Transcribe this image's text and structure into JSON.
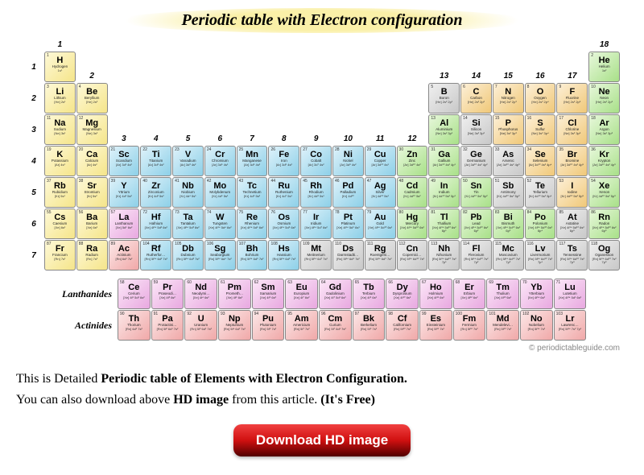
{
  "title": "Periodic table with Electron configuration",
  "credit": "© periodictableguide.com",
  "desc_line1_a": "This is Detailed ",
  "desc_line1_b": "Periodic table of Elements with Electron Configuration.",
  "desc_line2_a": "You can also download above ",
  "desc_line2_b": "HD image",
  "desc_line2_c": " from this article. ",
  "desc_line2_d": "(It's Free)",
  "download_btn": "Download HD image",
  "series": {
    "lanth": "Lanthanides",
    "act": "Actinides"
  },
  "group_labels": [
    "1",
    "2",
    "3",
    "4",
    "5",
    "6",
    "7",
    "8",
    "9",
    "10",
    "11",
    "12",
    "13",
    "14",
    "15",
    "16",
    "17",
    "18"
  ],
  "period_labels": [
    "1",
    "2",
    "3",
    "4",
    "5",
    "6",
    "7"
  ],
  "colors": {
    "alkali_y": "#f5e58a",
    "alk_earth_y": "#f5e58a",
    "noble_g": "#a8e088",
    "metalloid_g": "#a8e088",
    "trans_b": "#8dd0e8",
    "nonmet_o": "#f0c878",
    "post_gr": "#c8c8c8",
    "lanth_p": "#e8a8e0",
    "act_r": "#f0a8a8"
  },
  "elements": [
    {
      "n": 1,
      "s": "H",
      "name": "Hydrogen",
      "conf": "1s¹",
      "r": 1,
      "c": 1,
      "cl": "c-y"
    },
    {
      "n": 2,
      "s": "He",
      "name": "Helium",
      "conf": "1s²",
      "r": 1,
      "c": 18,
      "cl": "c-g"
    },
    {
      "n": 3,
      "s": "Li",
      "name": "Lithium",
      "conf": "[He] 2s¹",
      "r": 2,
      "c": 1,
      "cl": "c-y"
    },
    {
      "n": 4,
      "s": "Be",
      "name": "Beryllium",
      "conf": "[He] 2s²",
      "r": 2,
      "c": 2,
      "cl": "c-y"
    },
    {
      "n": 5,
      "s": "B",
      "name": "Boron",
      "conf": "[He] 2s² 2p¹",
      "r": 2,
      "c": 13,
      "cl": "c-gr"
    },
    {
      "n": 6,
      "s": "C",
      "name": "Carbon",
      "conf": "[He] 2s² 2p²",
      "r": 2,
      "c": 14,
      "cl": "c-o"
    },
    {
      "n": 7,
      "s": "N",
      "name": "Nitrogen",
      "conf": "[He] 2s² 2p³",
      "r": 2,
      "c": 15,
      "cl": "c-o"
    },
    {
      "n": 8,
      "s": "O",
      "name": "Oxygen",
      "conf": "[He] 2s² 2p⁴",
      "r": 2,
      "c": 16,
      "cl": "c-o"
    },
    {
      "n": 9,
      "s": "F",
      "name": "Fluorine",
      "conf": "[He] 2s² 2p⁵",
      "r": 2,
      "c": 17,
      "cl": "c-o"
    },
    {
      "n": 10,
      "s": "Ne",
      "name": "Neon",
      "conf": "[He] 2s² 2p⁶",
      "r": 2,
      "c": 18,
      "cl": "c-g"
    },
    {
      "n": 11,
      "s": "Na",
      "name": "Sodium",
      "conf": "[Ne] 3s¹",
      "r": 3,
      "c": 1,
      "cl": "c-y"
    },
    {
      "n": 12,
      "s": "Mg",
      "name": "Magnesium",
      "conf": "[Ne] 3s²",
      "r": 3,
      "c": 2,
      "cl": "c-y"
    },
    {
      "n": 13,
      "s": "Al",
      "name": "Aluminium",
      "conf": "[Ne] 3s² 3p¹",
      "r": 3,
      "c": 13,
      "cl": "c-g"
    },
    {
      "n": 14,
      "s": "Si",
      "name": "Silicon",
      "conf": "[Ne] 3s² 3p²",
      "r": 3,
      "c": 14,
      "cl": "c-gr"
    },
    {
      "n": 15,
      "s": "P",
      "name": "Phosphorus",
      "conf": "[Ne] 3s² 3p³",
      "r": 3,
      "c": 15,
      "cl": "c-o"
    },
    {
      "n": 16,
      "s": "S",
      "name": "Sulfur",
      "conf": "[Ne] 3s² 3p⁴",
      "r": 3,
      "c": 16,
      "cl": "c-o"
    },
    {
      "n": 17,
      "s": "Cl",
      "name": "Chlorine",
      "conf": "[Ne] 3s² 3p⁵",
      "r": 3,
      "c": 17,
      "cl": "c-o"
    },
    {
      "n": 18,
      "s": "Ar",
      "name": "Argon",
      "conf": "[Ne] 3s² 3p⁶",
      "r": 3,
      "c": 18,
      "cl": "c-g"
    },
    {
      "n": 19,
      "s": "K",
      "name": "Potassium",
      "conf": "[Ar] 4s¹",
      "r": 4,
      "c": 1,
      "cl": "c-y"
    },
    {
      "n": 20,
      "s": "Ca",
      "name": "Calcium",
      "conf": "[Ar] 4s²",
      "r": 4,
      "c": 2,
      "cl": "c-y"
    },
    {
      "n": 21,
      "s": "Sc",
      "name": "Scandium",
      "conf": "[Ar] 3d¹ 4s²",
      "r": 4,
      "c": 3,
      "cl": "c-b"
    },
    {
      "n": 22,
      "s": "Ti",
      "name": "Titanium",
      "conf": "[Ar] 3d² 4s²",
      "r": 4,
      "c": 4,
      "cl": "c-b"
    },
    {
      "n": 23,
      "s": "V",
      "name": "Vanadium",
      "conf": "[Ar] 3d³ 4s²",
      "r": 4,
      "c": 5,
      "cl": "c-b"
    },
    {
      "n": 24,
      "s": "Cr",
      "name": "Chromium",
      "conf": "[Ar] 3d⁵ 4s¹",
      "r": 4,
      "c": 6,
      "cl": "c-b"
    },
    {
      "n": 25,
      "s": "Mn",
      "name": "Manganese",
      "conf": "[Ar] 3d⁵ 4s²",
      "r": 4,
      "c": 7,
      "cl": "c-b"
    },
    {
      "n": 26,
      "s": "Fe",
      "name": "Iron",
      "conf": "[Ar] 3d⁶ 4s²",
      "r": 4,
      "c": 8,
      "cl": "c-b"
    },
    {
      "n": 27,
      "s": "Co",
      "name": "Cobalt",
      "conf": "[Ar] 3d⁷ 4s²",
      "r": 4,
      "c": 9,
      "cl": "c-b"
    },
    {
      "n": 28,
      "s": "Ni",
      "name": "Nickel",
      "conf": "[Ar] 3d⁸ 4s²",
      "r": 4,
      "c": 10,
      "cl": "c-b"
    },
    {
      "n": 29,
      "s": "Cu",
      "name": "Copper",
      "conf": "[Ar] 3d¹⁰ 4s¹",
      "r": 4,
      "c": 11,
      "cl": "c-b"
    },
    {
      "n": 30,
      "s": "Zn",
      "name": "Zinc",
      "conf": "[Ar] 3d¹⁰ 4s²",
      "r": 4,
      "c": 12,
      "cl": "c-g"
    },
    {
      "n": 31,
      "s": "Ga",
      "name": "Gallium",
      "conf": "[Ar] 3d¹⁰ 4s² 4p¹",
      "r": 4,
      "c": 13,
      "cl": "c-g"
    },
    {
      "n": 32,
      "s": "Ge",
      "name": "Germanium",
      "conf": "[Ar] 3d¹⁰ 4s² 4p²",
      "r": 4,
      "c": 14,
      "cl": "c-gr"
    },
    {
      "n": 33,
      "s": "As",
      "name": "Arsenic",
      "conf": "[Ar] 3d¹⁰ 4s² 4p³",
      "r": 4,
      "c": 15,
      "cl": "c-gr"
    },
    {
      "n": 34,
      "s": "Se",
      "name": "Selenium",
      "conf": "[Ar] 3d¹⁰ 4s² 4p⁴",
      "r": 4,
      "c": 16,
      "cl": "c-o"
    },
    {
      "n": 35,
      "s": "Br",
      "name": "Bromine",
      "conf": "[Ar] 3d¹⁰ 4s² 4p⁵",
      "r": 4,
      "c": 17,
      "cl": "c-o"
    },
    {
      "n": 36,
      "s": "Kr",
      "name": "Krypton",
      "conf": "[Ar] 3d¹⁰ 4s² 4p⁶",
      "r": 4,
      "c": 18,
      "cl": "c-g"
    },
    {
      "n": 37,
      "s": "Rb",
      "name": "Rubidium",
      "conf": "[Kr] 5s¹",
      "r": 5,
      "c": 1,
      "cl": "c-y"
    },
    {
      "n": 38,
      "s": "Sr",
      "name": "Strontium",
      "conf": "[Kr] 5s²",
      "r": 5,
      "c": 2,
      "cl": "c-y"
    },
    {
      "n": 39,
      "s": "Y",
      "name": "Yttrium",
      "conf": "[Kr] 4d¹ 5s²",
      "r": 5,
      "c": 3,
      "cl": "c-b"
    },
    {
      "n": 40,
      "s": "Zr",
      "name": "Zirconium",
      "conf": "[Kr] 4d² 5s²",
      "r": 5,
      "c": 4,
      "cl": "c-b"
    },
    {
      "n": 41,
      "s": "Nb",
      "name": "Niobium",
      "conf": "[Kr] 4d⁴ 5s¹",
      "r": 5,
      "c": 5,
      "cl": "c-b"
    },
    {
      "n": 42,
      "s": "Mo",
      "name": "Molybdenum",
      "conf": "[Kr] 4d⁵ 5s¹",
      "r": 5,
      "c": 6,
      "cl": "c-b"
    },
    {
      "n": 43,
      "s": "Tc",
      "name": "Technetium",
      "conf": "[Kr] 4d⁵ 5s²",
      "r": 5,
      "c": 7,
      "cl": "c-b"
    },
    {
      "n": 44,
      "s": "Ru",
      "name": "Ruthenium",
      "conf": "[Kr] 4d⁷ 5s¹",
      "r": 5,
      "c": 8,
      "cl": "c-b"
    },
    {
      "n": 45,
      "s": "Rh",
      "name": "Rhodium",
      "conf": "[Kr] 4d⁸ 5s¹",
      "r": 5,
      "c": 9,
      "cl": "c-b"
    },
    {
      "n": 46,
      "s": "Pd",
      "name": "Palladium",
      "conf": "[Kr] 4d¹⁰",
      "r": 5,
      "c": 10,
      "cl": "c-b"
    },
    {
      "n": 47,
      "s": "Ag",
      "name": "Silver",
      "conf": "[Kr] 4d¹⁰ 5s¹",
      "r": 5,
      "c": 11,
      "cl": "c-b"
    },
    {
      "n": 48,
      "s": "Cd",
      "name": "Cadmium",
      "conf": "[Kr] 4d¹⁰ 5s²",
      "r": 5,
      "c": 12,
      "cl": "c-g"
    },
    {
      "n": 49,
      "s": "In",
      "name": "Indium",
      "conf": "[Kr] 4d¹⁰ 5s² 5p¹",
      "r": 5,
      "c": 13,
      "cl": "c-g"
    },
    {
      "n": 50,
      "s": "Sn",
      "name": "Tin",
      "conf": "[Kr] 4d¹⁰ 5s² 5p²",
      "r": 5,
      "c": 14,
      "cl": "c-g"
    },
    {
      "n": 51,
      "s": "Sb",
      "name": "Antimony",
      "conf": "[Kr] 4d¹⁰ 5s² 5p³",
      "r": 5,
      "c": 15,
      "cl": "c-gr"
    },
    {
      "n": 52,
      "s": "Te",
      "name": "Tellurium",
      "conf": "[Kr] 4d¹⁰ 5s² 5p⁴",
      "r": 5,
      "c": 16,
      "cl": "c-gr"
    },
    {
      "n": 53,
      "s": "I",
      "name": "Iodine",
      "conf": "[Kr] 4d¹⁰ 5s² 5p⁵",
      "r": 5,
      "c": 17,
      "cl": "c-o"
    },
    {
      "n": 54,
      "s": "Xe",
      "name": "Xenon",
      "conf": "[Kr] 4d¹⁰ 5s² 5p⁶",
      "r": 5,
      "c": 18,
      "cl": "c-g"
    },
    {
      "n": 55,
      "s": "Cs",
      "name": "Caesium",
      "conf": "[Xe] 6s¹",
      "r": 6,
      "c": 1,
      "cl": "c-y"
    },
    {
      "n": 56,
      "s": "Ba",
      "name": "Barium",
      "conf": "[Xe] 6s²",
      "r": 6,
      "c": 2,
      "cl": "c-y"
    },
    {
      "n": 57,
      "s": "La",
      "name": "Lanthanum",
      "conf": "[Xe] 5d¹ 6s²",
      "r": 6,
      "c": 3,
      "cl": "c-p"
    },
    {
      "n": 72,
      "s": "Hf",
      "name": "Hafnium",
      "conf": "[Xe] 4f¹⁴ 5d² 6s²",
      "r": 6,
      "c": 4,
      "cl": "c-b"
    },
    {
      "n": 73,
      "s": "Ta",
      "name": "Tantalum",
      "conf": "[Xe] 4f¹⁴ 5d³ 6s²",
      "r": 6,
      "c": 5,
      "cl": "c-b"
    },
    {
      "n": 74,
      "s": "W",
      "name": "Tungsten",
      "conf": "[Xe] 4f¹⁴ 5d⁴ 6s²",
      "r": 6,
      "c": 6,
      "cl": "c-b"
    },
    {
      "n": 75,
      "s": "Re",
      "name": "Rhenium",
      "conf": "[Xe] 4f¹⁴ 5d⁵ 6s²",
      "r": 6,
      "c": 7,
      "cl": "c-b"
    },
    {
      "n": 76,
      "s": "Os",
      "name": "Osmium",
      "conf": "[Xe] 4f¹⁴ 5d⁶ 6s²",
      "r": 6,
      "c": 8,
      "cl": "c-b"
    },
    {
      "n": 77,
      "s": "Ir",
      "name": "Iridium",
      "conf": "[Xe] 4f¹⁴ 5d⁷ 6s²",
      "r": 6,
      "c": 9,
      "cl": "c-b"
    },
    {
      "n": 78,
      "s": "Pt",
      "name": "Platinum",
      "conf": "[Xe] 4f¹⁴ 5d⁹ 6s¹",
      "r": 6,
      "c": 10,
      "cl": "c-b"
    },
    {
      "n": 79,
      "s": "Au",
      "name": "Gold",
      "conf": "[Xe] 4f¹⁴ 5d¹⁰ 6s¹",
      "r": 6,
      "c": 11,
      "cl": "c-b"
    },
    {
      "n": 80,
      "s": "Hg",
      "name": "Mercury",
      "conf": "[Xe] 4f¹⁴ 5d¹⁰ 6s²",
      "r": 6,
      "c": 12,
      "cl": "c-g"
    },
    {
      "n": 81,
      "s": "Tl",
      "name": "Thallium",
      "conf": "[Xe] 4f¹⁴ 5d¹⁰ 6s² 6p¹",
      "r": 6,
      "c": 13,
      "cl": "c-g"
    },
    {
      "n": 82,
      "s": "Pb",
      "name": "Lead",
      "conf": "[Xe] 4f¹⁴ 5d¹⁰ 6s² 6p²",
      "r": 6,
      "c": 14,
      "cl": "c-g"
    },
    {
      "n": 83,
      "s": "Bi",
      "name": "Bismuth",
      "conf": "[Xe] 4f¹⁴ 5d¹⁰ 6s² 6p³",
      "r": 6,
      "c": 15,
      "cl": "c-g"
    },
    {
      "n": 84,
      "s": "Po",
      "name": "Polonium",
      "conf": "[Xe] 4f¹⁴ 5d¹⁰ 6s² 6p⁴",
      "r": 6,
      "c": 16,
      "cl": "c-g"
    },
    {
      "n": 85,
      "s": "At",
      "name": "Astatine",
      "conf": "[Xe] 4f¹⁴ 5d¹⁰ 6s² 6p⁵",
      "r": 6,
      "c": 17,
      "cl": "c-gr"
    },
    {
      "n": 86,
      "s": "Rn",
      "name": "Radon",
      "conf": "[Xe] 4f¹⁴ 5d¹⁰ 6s² 6p⁶",
      "r": 6,
      "c": 18,
      "cl": "c-g"
    },
    {
      "n": 87,
      "s": "Fr",
      "name": "Francium",
      "conf": "[Rn] 7s¹",
      "r": 7,
      "c": 1,
      "cl": "c-y"
    },
    {
      "n": 88,
      "s": "Ra",
      "name": "Radium",
      "conf": "[Rn] 7s²",
      "r": 7,
      "c": 2,
      "cl": "c-y"
    },
    {
      "n": 89,
      "s": "Ac",
      "name": "Actinium",
      "conf": "[Rn] 6d¹ 7s²",
      "r": 7,
      "c": 3,
      "cl": "c-r"
    },
    {
      "n": 104,
      "s": "Rf",
      "name": "Rutherfor…",
      "conf": "[Rn] 5f¹⁴ 6d² 7s²",
      "r": 7,
      "c": 4,
      "cl": "c-b"
    },
    {
      "n": 105,
      "s": "Db",
      "name": "Dubnium",
      "conf": "[Rn] 5f¹⁴ 6d³ 7s²",
      "r": 7,
      "c": 5,
      "cl": "c-b"
    },
    {
      "n": 106,
      "s": "Sg",
      "name": "Seaborgium",
      "conf": "[Rn] 5f¹⁴ 6d⁴ 7s²",
      "r": 7,
      "c": 6,
      "cl": "c-b"
    },
    {
      "n": 107,
      "s": "Bh",
      "name": "Bohrium",
      "conf": "[Rn] 5f¹⁴ 6d⁵ 7s²",
      "r": 7,
      "c": 7,
      "cl": "c-b"
    },
    {
      "n": 108,
      "s": "Hs",
      "name": "Hassium",
      "conf": "[Rn] 5f¹⁴ 6d⁶ 7s²",
      "r": 7,
      "c": 8,
      "cl": "c-b"
    },
    {
      "n": 109,
      "s": "Mt",
      "name": "Meitnerium",
      "conf": "[Rn] 5f¹⁴ 6d⁷ 7s²",
      "r": 7,
      "c": 9,
      "cl": "c-gr"
    },
    {
      "n": 110,
      "s": "Ds",
      "name": "Darmstadti…",
      "conf": "[Rn] 5f¹⁴ 6d⁸ 7s²",
      "r": 7,
      "c": 10,
      "cl": "c-gr"
    },
    {
      "n": 111,
      "s": "Rg",
      "name": "Roentgeni…",
      "conf": "[Rn] 5f¹⁴ 6d⁹ 7s²",
      "r": 7,
      "c": 11,
      "cl": "c-gr"
    },
    {
      "n": 112,
      "s": "Cn",
      "name": "Copernici…",
      "conf": "[Rn] 5f¹⁴ 6d¹⁰ 7s²",
      "r": 7,
      "c": 12,
      "cl": "c-gr"
    },
    {
      "n": 113,
      "s": "Nh",
      "name": "Nihonium",
      "conf": "[Rn] 5f¹⁴ 6d¹⁰ 7s² 7p¹",
      "r": 7,
      "c": 13,
      "cl": "c-gr"
    },
    {
      "n": 114,
      "s": "Fl",
      "name": "Flerovium",
      "conf": "[Rn] 5f¹⁴ 6d¹⁰ 7s² 7p²",
      "r": 7,
      "c": 14,
      "cl": "c-gr"
    },
    {
      "n": 115,
      "s": "Mc",
      "name": "Moscovium",
      "conf": "[Rn] 5f¹⁴ 6d¹⁰ 7s² 7p³",
      "r": 7,
      "c": 15,
      "cl": "c-gr"
    },
    {
      "n": 116,
      "s": "Lv",
      "name": "Livermorium",
      "conf": "[Rn] 5f¹⁴ 6d¹⁰ 7s² 7p⁴",
      "r": 7,
      "c": 16,
      "cl": "c-gr"
    },
    {
      "n": 117,
      "s": "Ts",
      "name": "Tennessine",
      "conf": "[Rn] 5f¹⁴ 6d¹⁰ 7s² 7p⁵",
      "r": 7,
      "c": 17,
      "cl": "c-gr"
    },
    {
      "n": 118,
      "s": "Og",
      "name": "Oganesson",
      "conf": "[Rn] 5f¹⁴ 6d¹⁰ 7s² 7p⁶",
      "r": 7,
      "c": 18,
      "cl": "c-gr"
    }
  ],
  "lanthanides": [
    {
      "n": 58,
      "s": "Ce",
      "name": "Cerium",
      "conf": "[Xe] 4f¹ 5d¹ 6s²",
      "cl": "c-p"
    },
    {
      "n": 59,
      "s": "Pr",
      "name": "Praseodi…",
      "conf": "[Xe] 4f³ 6s²",
      "cl": "c-p"
    },
    {
      "n": 60,
      "s": "Nd",
      "name": "Neodymi…",
      "conf": "[Xe] 4f⁴ 6s²",
      "cl": "c-p"
    },
    {
      "n": 61,
      "s": "Pm",
      "name": "Prometh…",
      "conf": "[Xe] 4f⁵ 6s²",
      "cl": "c-p"
    },
    {
      "n": 62,
      "s": "Sm",
      "name": "Samarium",
      "conf": "[Xe] 4f⁶ 6s²",
      "cl": "c-p"
    },
    {
      "n": 63,
      "s": "Eu",
      "name": "Europium",
      "conf": "[Xe] 4f⁷ 6s²",
      "cl": "c-p"
    },
    {
      "n": 64,
      "s": "Gd",
      "name": "Gadolinium",
      "conf": "[Xe] 4f⁷ 5d¹ 6s²",
      "cl": "c-p"
    },
    {
      "n": 65,
      "s": "Tb",
      "name": "Terbium",
      "conf": "[Xe] 4f⁹ 6s²",
      "cl": "c-p"
    },
    {
      "n": 66,
      "s": "Dy",
      "name": "Dysprosium",
      "conf": "[Xe] 4f¹⁰ 6s²",
      "cl": "c-p"
    },
    {
      "n": 67,
      "s": "Ho",
      "name": "Holmium",
      "conf": "[Xe] 4f¹¹ 6s²",
      "cl": "c-p"
    },
    {
      "n": 68,
      "s": "Er",
      "name": "Erbium",
      "conf": "[Xe] 4f¹² 6s²",
      "cl": "c-p"
    },
    {
      "n": 69,
      "s": "Tm",
      "name": "Thulium",
      "conf": "[Xe] 4f¹³ 6s²",
      "cl": "c-p"
    },
    {
      "n": 70,
      "s": "Yb",
      "name": "Ytterbium",
      "conf": "[Xe] 4f¹⁴ 6s²",
      "cl": "c-p"
    },
    {
      "n": 71,
      "s": "Lu",
      "name": "Lutetium",
      "conf": "[Xe] 4f¹⁴ 5d¹ 6s²",
      "cl": "c-p"
    }
  ],
  "actinides": [
    {
      "n": 90,
      "s": "Th",
      "name": "Thorium",
      "conf": "[Rn] 6d² 7s²",
      "cl": "c-r"
    },
    {
      "n": 91,
      "s": "Pa",
      "name": "Protactini…",
      "conf": "[Rn] 5f² 6d¹ 7s²",
      "cl": "c-r"
    },
    {
      "n": 92,
      "s": "U",
      "name": "Uranium",
      "conf": "[Rn] 5f³ 6d¹ 7s²",
      "cl": "c-r"
    },
    {
      "n": 93,
      "s": "Np",
      "name": "Neptunium",
      "conf": "[Rn] 5f⁴ 6d¹ 7s²",
      "cl": "c-r"
    },
    {
      "n": 94,
      "s": "Pu",
      "name": "Plutonium",
      "conf": "[Rn] 5f⁶ 7s²",
      "cl": "c-r"
    },
    {
      "n": 95,
      "s": "Am",
      "name": "Americium",
      "conf": "[Rn] 5f⁷ 7s²",
      "cl": "c-r"
    },
    {
      "n": 96,
      "s": "Cm",
      "name": "Curium",
      "conf": "[Rn] 5f⁷ 6d¹ 7s²",
      "cl": "c-r"
    },
    {
      "n": 97,
      "s": "Bk",
      "name": "Berkelium",
      "conf": "[Rn] 5f⁹ 7s²",
      "cl": "c-r"
    },
    {
      "n": 98,
      "s": "Cf",
      "name": "Californium",
      "conf": "[Rn] 5f¹⁰ 7s²",
      "cl": "c-r"
    },
    {
      "n": 99,
      "s": "Es",
      "name": "Einsteinium",
      "conf": "[Rn] 5f¹¹ 7s²",
      "cl": "c-r"
    },
    {
      "n": 100,
      "s": "Fm",
      "name": "Fermium",
      "conf": "[Rn] 5f¹² 7s²",
      "cl": "c-r"
    },
    {
      "n": 101,
      "s": "Md",
      "name": "Mendelevi…",
      "conf": "[Rn] 5f¹³ 7s²",
      "cl": "c-r"
    },
    {
      "n": 102,
      "s": "No",
      "name": "Nobelium",
      "conf": "[Rn] 5f¹⁴ 7s²",
      "cl": "c-r"
    },
    {
      "n": 103,
      "s": "Lr",
      "name": "Lawrenc…",
      "conf": "[Rn] 5f¹⁴ 7s² 7p¹",
      "cl": "c-r"
    }
  ]
}
